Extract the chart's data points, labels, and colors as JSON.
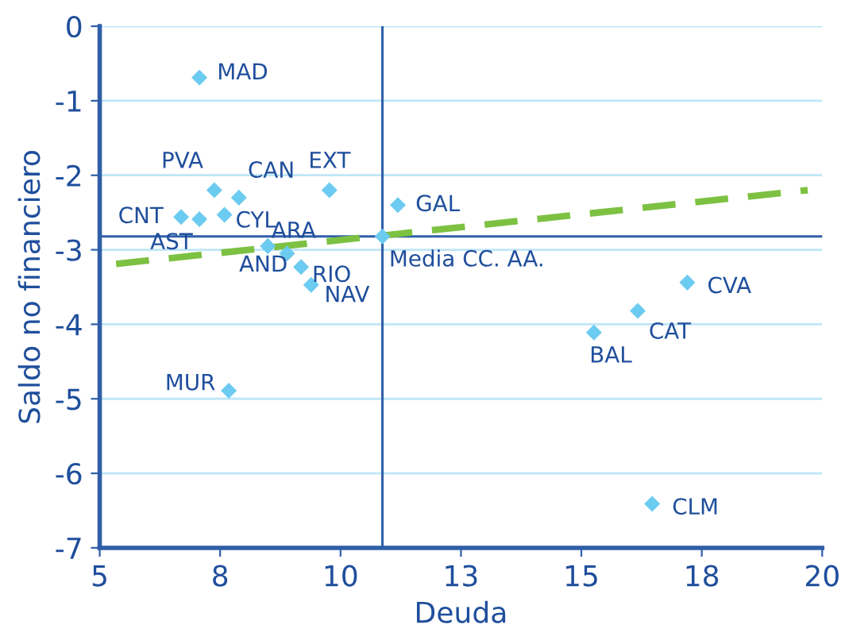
{
  "chart_data": {
    "type": "scatter",
    "xlabel": "Deuda",
    "ylabel": "Saldo no financiero",
    "xlim": [
      5,
      20
    ],
    "ylim": [
      -7,
      0
    ],
    "xticks": [
      5,
      {
        "value": 7.5,
        "label": "8"
      },
      10,
      {
        "value": 12.5,
        "label": "13"
      },
      15,
      {
        "value": 17.5,
        "label": "18"
      },
      20
    ],
    "yticks": [
      {
        "value": -7,
        "label": "-7"
      },
      {
        "value": -6,
        "label": "-6"
      },
      {
        "value": -5,
        "label": "-5"
      },
      {
        "value": -4,
        "label": "-4"
      },
      {
        "value": -3,
        "label": "-3"
      },
      {
        "value": -2,
        "label": "-2"
      },
      {
        "value": -1,
        "label": "-1"
      },
      0
    ],
    "grid": "y",
    "marker": "diamond",
    "legend": false,
    "series": [
      {
        "color": "#6ccbf0",
        "x": [
          7.07,
          7.38,
          7.89,
          9.77,
          6.69,
          7.07,
          7.59,
          8.49,
          8.89,
          9.18,
          9.39,
          10.87,
          11.19,
          17.2,
          16.17,
          15.26,
          16.47,
          7.68
        ],
        "values": [
          -0.69,
          -2.2,
          -2.3,
          -2.2,
          -2.56,
          -2.59,
          -2.53,
          -2.95,
          -3.05,
          -3.23,
          -3.47,
          -2.82,
          -2.4,
          -3.44,
          -3.82,
          -4.11,
          -6.41,
          -4.89
        ]
      },
      {
        "type": "line",
        "color": "#7dc142",
        "line_style": "dashed",
        "marker": "none",
        "x": [
          5.34,
          19.7
        ],
        "values": [
          -3.19,
          -2.2
        ]
      }
    ],
    "ref_lines": [
      {
        "axis": "x",
        "value": 10.87,
        "color": "#2f5fa8"
      },
      {
        "axis": "y",
        "value": -2.82,
        "color": "#2f5fa8"
      }
    ],
    "annotations": [
      {
        "text": "MAD",
        "x": 7.07,
        "y": -0.69
      },
      {
        "text": "PVA",
        "x": 7.38,
        "y": -2.2
      },
      {
        "text": "CAN",
        "x": 7.89,
        "y": -2.3
      },
      {
        "text": "EXT",
        "x": 9.77,
        "y": -2.2
      },
      {
        "text": "CNT",
        "x": 6.69,
        "y": -2.56
      },
      {
        "text": "AST",
        "x": 7.07,
        "y": -2.59
      },
      {
        "text": "CYL",
        "x": 7.59,
        "y": -2.53
      },
      {
        "text": "AND",
        "x": 8.49,
        "y": -2.95
      },
      {
        "text": "ARA",
        "x": 8.89,
        "y": -3.05
      },
      {
        "text": "RIO",
        "x": 9.18,
        "y": -3.23
      },
      {
        "text": "NAV",
        "x": 9.39,
        "y": -3.47
      },
      {
        "text": "Media CC. AA.",
        "x": 10.87,
        "y": -2.82
      },
      {
        "text": "GAL",
        "x": 11.19,
        "y": -2.4
      },
      {
        "text": "CVA",
        "x": 17.2,
        "y": -3.44
      },
      {
        "text": "CAT",
        "x": 16.17,
        "y": -3.82
      },
      {
        "text": "BAL",
        "x": 15.26,
        "y": -4.11
      },
      {
        "text": "CLM",
        "x": 16.47,
        "y": -6.41
      },
      {
        "text": "MUR",
        "x": 7.68,
        "y": -4.89
      }
    ]
  }
}
